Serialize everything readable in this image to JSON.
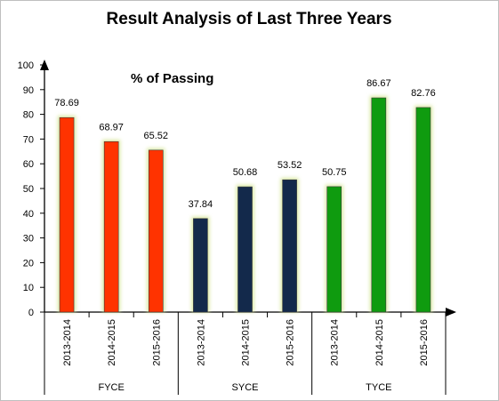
{
  "chart_data": {
    "type": "bar",
    "title": "Result Analysis of Last Three Years",
    "subtitle": "%  of  Passing",
    "ylim": [
      0,
      100
    ],
    "yticks": [
      0,
      10,
      20,
      30,
      40,
      50,
      60,
      70,
      80,
      90,
      100
    ],
    "grid": false,
    "legend": "none",
    "groups": [
      {
        "name": "FYCE",
        "color": "#ff3300",
        "categories": [
          "2013-2014",
          "2014-2015",
          "2015-2016"
        ],
        "values": [
          78.69,
          68.97,
          65.52
        ],
        "labels": [
          "78.69",
          "68.97",
          "65.52"
        ]
      },
      {
        "name": "SYCE",
        "color": "#13294b",
        "categories": [
          "2013-2014",
          "2014-2015",
          "2015-2016"
        ],
        "values": [
          37.84,
          50.68,
          53.52
        ],
        "labels": [
          "37.84",
          "50.68",
          "53.52"
        ]
      },
      {
        "name": "TYCE",
        "color": "#0f9b0f",
        "categories": [
          "2013-2014",
          "2014-2015",
          "2015-2016"
        ],
        "values": [
          50.75,
          86.67,
          82.76
        ],
        "labels": [
          "50.75",
          "86.67",
          "82.76"
        ]
      }
    ],
    "bar_glow_color": "#d9e8a0",
    "axis_color": "#000000"
  }
}
